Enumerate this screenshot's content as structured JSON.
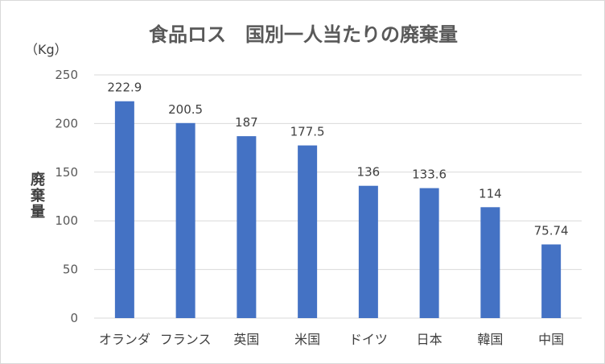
{
  "chart_data": {
    "type": "bar",
    "title": "食品ロス　国別一人当たりの廃棄量",
    "unit_label": "（Kg）",
    "ylabel": "廃棄量",
    "xlabel": "",
    "categories": [
      "オランダ",
      "フランス",
      "英国",
      "米国",
      "ドイツ",
      "日本",
      "韓国",
      "中国"
    ],
    "values": [
      222.9,
      200.5,
      187,
      177.5,
      136,
      133.6,
      114,
      75.74
    ],
    "data_labels": [
      "222.9",
      "200.5",
      "187",
      "177.5",
      "136",
      "133.6",
      "114",
      "75.74"
    ],
    "ylim": [
      0,
      250
    ],
    "yticks": [
      0,
      50,
      100,
      150,
      200,
      250
    ],
    "grid": true,
    "legend": "none",
    "bar_color": "#4472C4"
  }
}
